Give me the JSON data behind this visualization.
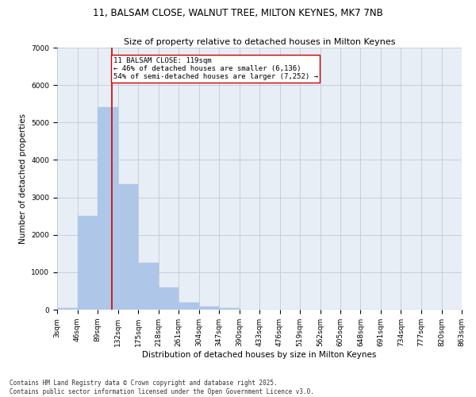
{
  "title_line1": "11, BALSAM CLOSE, WALNUT TREE, MILTON KEYNES, MK7 7NB",
  "title_line2": "Size of property relative to detached houses in Milton Keynes",
  "xlabel": "Distribution of detached houses by size in Milton Keynes",
  "ylabel": "Number of detached properties",
  "bin_edges": [
    3,
    46,
    89,
    132,
    175,
    218,
    261,
    304,
    347,
    390,
    433,
    476,
    519,
    562,
    605,
    648,
    691,
    734,
    777,
    820,
    863
  ],
  "bar_heights": [
    50,
    2500,
    5400,
    3350,
    1250,
    600,
    200,
    80,
    50,
    5,
    0,
    0,
    0,
    0,
    0,
    0,
    0,
    0,
    0,
    0
  ],
  "bar_color": "#aec6e8",
  "bar_edge_color": "#aec6e8",
  "vline_x": 119,
  "vline_color": "#cc0000",
  "annotation_text": "11 BALSAM CLOSE: 119sqm\n← 46% of detached houses are smaller (6,136)\n54% of semi-detached houses are larger (7,252) →",
  "annotation_box_color": "#ffffff",
  "annotation_box_edge": "#cc0000",
  "ylim": [
    0,
    7000
  ],
  "yticks": [
    0,
    1000,
    2000,
    3000,
    4000,
    5000,
    6000,
    7000
  ],
  "bg_color": "#e8eef5",
  "footnote": "Contains HM Land Registry data © Crown copyright and database right 2025.\nContains public sector information licensed under the Open Government Licence v3.0.",
  "title_fontsize": 8.5,
  "subtitle_fontsize": 8.0,
  "axis_label_fontsize": 7.5,
  "tick_fontsize": 6.5,
  "annot_fontsize": 6.5,
  "footnote_fontsize": 5.5
}
